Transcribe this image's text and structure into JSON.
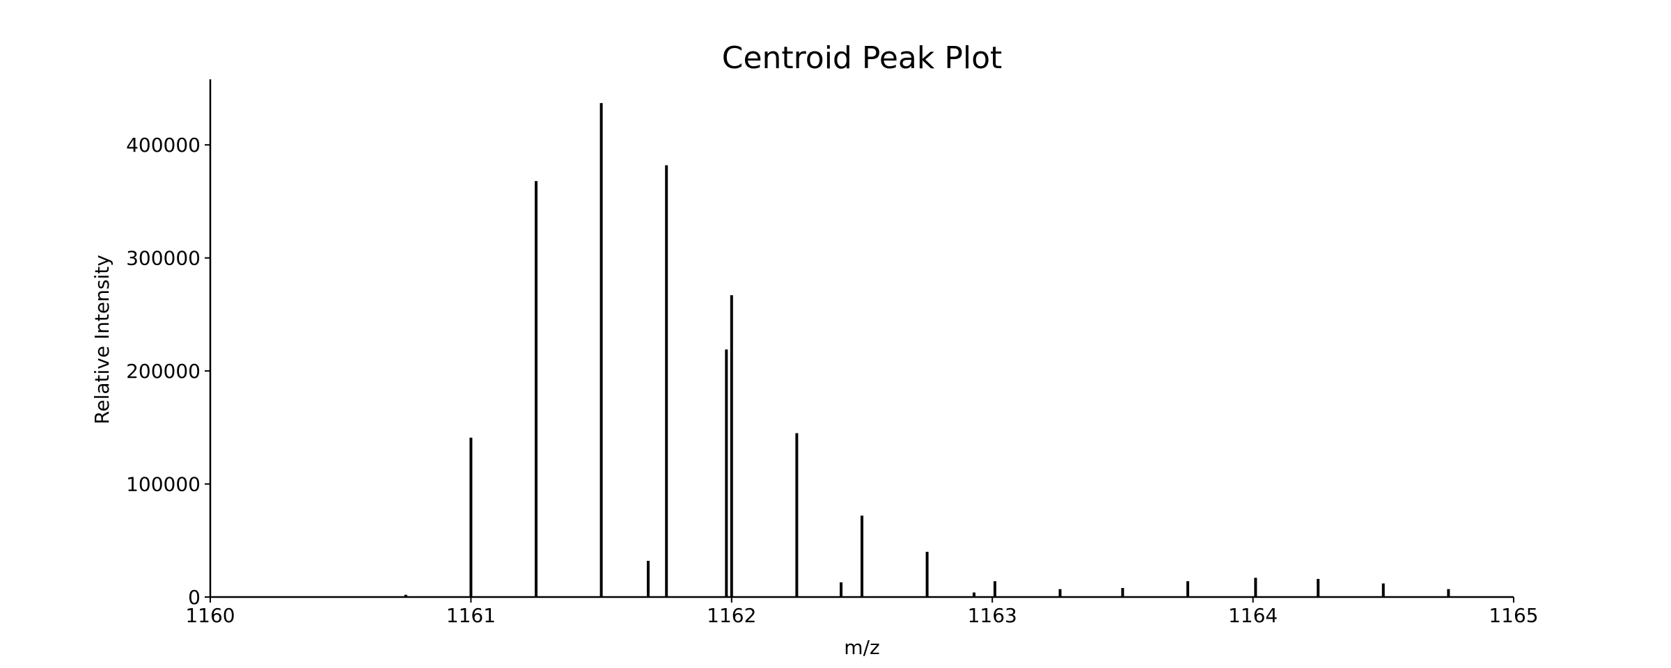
{
  "chart_data": {
    "type": "bar",
    "subtype": "stick",
    "title": "Centroid Peak Plot",
    "xlabel": "m/z",
    "ylabel": "Relative Intensity",
    "xlim": [
      1160,
      1165
    ],
    "ylim": [
      0,
      458000
    ],
    "xticks": [
      "1160",
      "1161",
      "1162",
      "1163",
      "1164",
      "1165"
    ],
    "yticks": [
      "0",
      "100000",
      "200000",
      "300000",
      "400000"
    ],
    "grid": false,
    "legend": "none",
    "color": "#000000",
    "x": [
      1160.75,
      1161.0,
      1161.25,
      1161.5,
      1161.68,
      1161.75,
      1161.98,
      1162.0,
      1162.25,
      1162.42,
      1162.5,
      1162.75,
      1162.93,
      1163.01,
      1163.26,
      1163.5,
      1163.75,
      1164.01,
      1164.25,
      1164.5,
      1164.75
    ],
    "values": [
      2000,
      141000,
      368000,
      437000,
      32000,
      382000,
      219000,
      267000,
      145000,
      13000,
      72000,
      40000,
      4000,
      14000,
      7000,
      8000,
      14000,
      17000,
      16000,
      12000,
      7000
    ]
  }
}
